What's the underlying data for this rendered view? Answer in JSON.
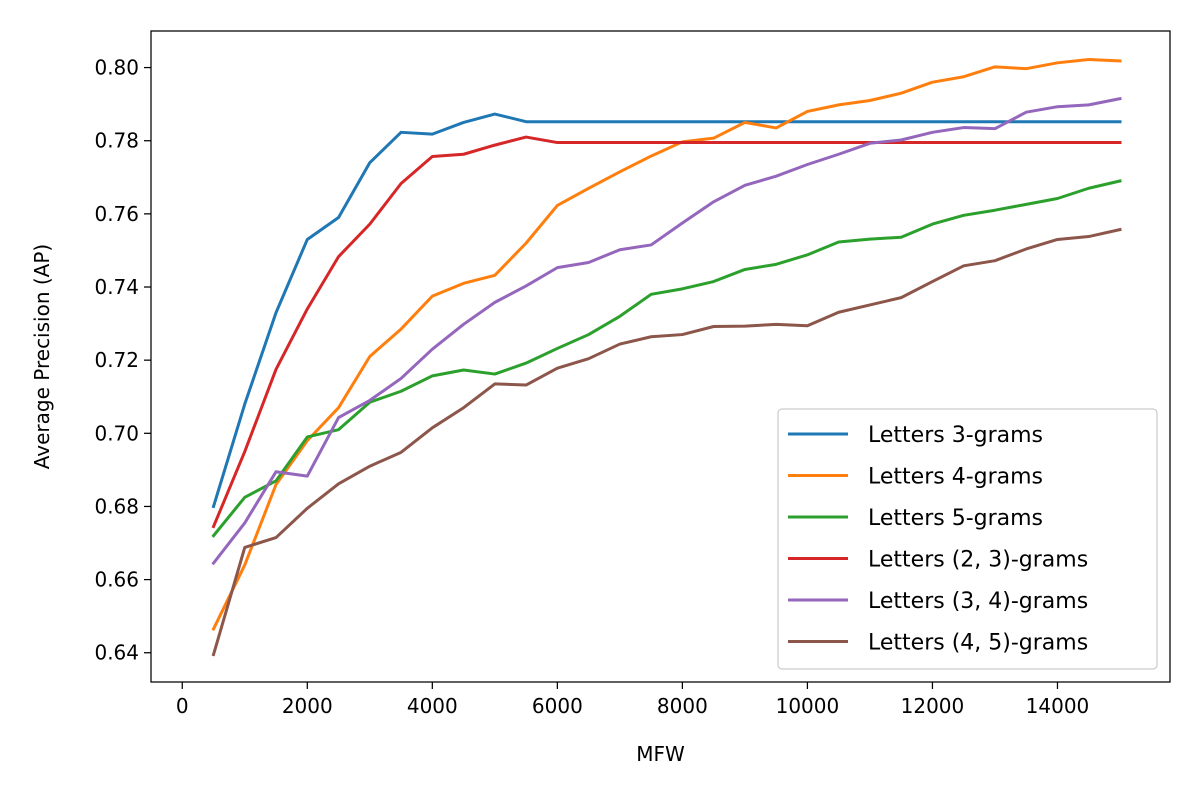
{
  "chart_data": {
    "type": "line",
    "xlabel": "MFW",
    "ylabel": "Average Precision (AP)",
    "xlim": [
      -500,
      15800
    ],
    "ylim": [
      0.632,
      0.81
    ],
    "xticks": [
      0,
      2000,
      4000,
      6000,
      8000,
      10000,
      12000,
      14000
    ],
    "yticks": [
      0.64,
      0.66,
      0.68,
      0.7,
      0.72,
      0.74,
      0.76,
      0.78,
      0.8
    ],
    "grid": false,
    "legend_position": "lower-right",
    "x": [
      500,
      1000,
      1500,
      2000,
      2500,
      3000,
      3500,
      4000,
      4500,
      5000,
      5500,
      6000,
      6500,
      7000,
      7500,
      8000,
      8500,
      9000,
      9500,
      10000,
      10500,
      11000,
      11500,
      12000,
      12500,
      13000,
      13500,
      14000,
      14500,
      15000
    ],
    "series": [
      {
        "name": "Letters 3-grams",
        "color": "#1f77b4",
        "values": [
          0.68,
          0.708,
          0.733,
          0.753,
          0.759,
          0.774,
          0.7823,
          0.7818,
          0.785,
          0.7873,
          0.7852,
          0.7852,
          0.7852,
          0.7852,
          0.7852,
          0.7852,
          0.7852,
          0.7852,
          0.7852,
          0.7852,
          0.7852,
          0.7852,
          0.7852,
          0.7852,
          0.7852,
          0.7852,
          0.7852,
          0.7852,
          0.7852,
          0.7852
        ]
      },
      {
        "name": "Letters 4-grams",
        "color": "#ff7f0e",
        "values": [
          0.6465,
          0.664,
          0.686,
          0.698,
          0.707,
          0.721,
          0.7285,
          0.7375,
          0.741,
          0.7432,
          0.752,
          0.7623,
          0.767,
          0.7715,
          0.7758,
          0.7797,
          0.7807,
          0.785,
          0.7835,
          0.788,
          0.7898,
          0.791,
          0.793,
          0.796,
          0.7975,
          0.8002,
          0.7997,
          0.8013,
          0.8022,
          0.8018
        ]
      },
      {
        "name": "Letters 5-grams",
        "color": "#2ca02c",
        "values": [
          0.672,
          0.6825,
          0.687,
          0.699,
          0.701,
          0.7085,
          0.7115,
          0.7157,
          0.7173,
          0.7162,
          0.7192,
          0.7232,
          0.727,
          0.732,
          0.738,
          0.7395,
          0.7415,
          0.7448,
          0.7462,
          0.7488,
          0.7523,
          0.7531,
          0.7536,
          0.7572,
          0.7596,
          0.761,
          0.7626,
          0.7642,
          0.767,
          0.769
        ]
      },
      {
        "name": "Letters (2, 3)-grams",
        "color": "#d62728",
        "values": [
          0.6745,
          0.695,
          0.7175,
          0.734,
          0.7483,
          0.7572,
          0.7683,
          0.7757,
          0.7763,
          0.7788,
          0.781,
          0.7795,
          0.7795,
          0.7795,
          0.7795,
          0.7795,
          0.7795,
          0.7795,
          0.7795,
          0.7795,
          0.7795,
          0.7795,
          0.7795,
          0.7795,
          0.7795,
          0.7795,
          0.7795,
          0.7795,
          0.7795,
          0.7795
        ]
      },
      {
        "name": "Letters (3, 4)-grams",
        "color": "#9467bd",
        "values": [
          0.6645,
          0.6755,
          0.6895,
          0.6883,
          0.7043,
          0.709,
          0.715,
          0.723,
          0.7298,
          0.7358,
          0.7403,
          0.7453,
          0.7467,
          0.7502,
          0.7515,
          0.7575,
          0.7633,
          0.7678,
          0.7703,
          0.7735,
          0.7763,
          0.7793,
          0.7802,
          0.7823,
          0.7836,
          0.7833,
          0.7878,
          0.7893,
          0.7898,
          0.7915
        ]
      },
      {
        "name": "Letters (4, 5)-grams",
        "color": "#8c564b",
        "values": [
          0.6395,
          0.6688,
          0.6715,
          0.6795,
          0.6862,
          0.691,
          0.6948,
          0.7015,
          0.707,
          0.7135,
          0.7132,
          0.7178,
          0.7204,
          0.7244,
          0.7264,
          0.727,
          0.7292,
          0.7293,
          0.7298,
          0.7294,
          0.7331,
          0.7351,
          0.7371,
          0.7415,
          0.7458,
          0.7472,
          0.7504,
          0.753,
          0.7538,
          0.7557
        ]
      }
    ]
  }
}
